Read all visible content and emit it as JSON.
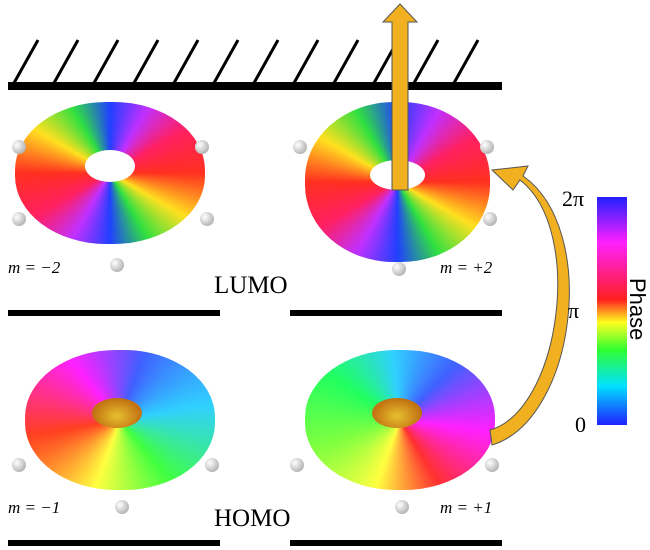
{
  "orbitals": [
    {
      "label": "m = −2"
    },
    {
      "label": "m = +2"
    },
    {
      "label": "m = −1"
    },
    {
      "label": "m = +1"
    }
  ],
  "levels": [
    "LUMO",
    "HOMO"
  ],
  "colorbar": {
    "title": "Phase",
    "ticks": [
      "2π",
      "π",
      "0"
    ]
  }
}
